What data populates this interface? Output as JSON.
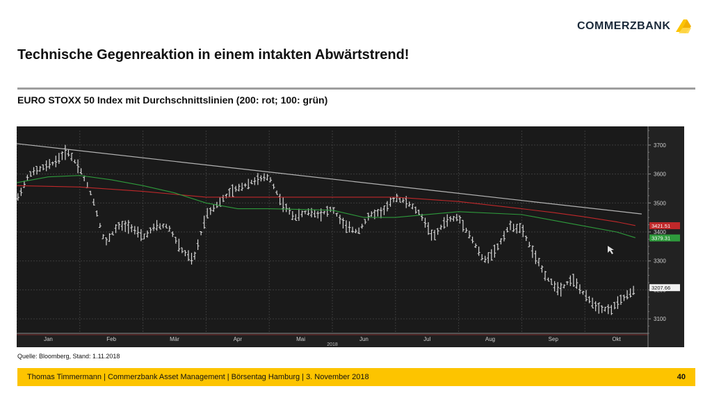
{
  "brand": {
    "name": "COMMERZBANK",
    "accent": "#fdc400"
  },
  "slide": {
    "title": "Technische Gegenreaktion in einem intakten Abwärtstrend!",
    "subtitle": "EURO STOXX 50 Index mit Durchschnittslinien (200: rot; 100: grün)",
    "source": "Quelle: Bloomberg, Stand: 1.11.2018",
    "footer": "Thomas Timmermann | Commerzbank Asset Management | Börsentag Hamburg | 3. November 2018",
    "page_number": "40"
  },
  "chart_data": {
    "type": "line",
    "title": "",
    "xlabel": "",
    "ylabel": "",
    "x_year_label": "2018",
    "categories": [
      "Jan",
      "Feb",
      "Mär",
      "Apr",
      "Mai",
      "Jun",
      "Jul",
      "Aug",
      "Sep",
      "Okt"
    ],
    "x_range": [
      0,
      10
    ],
    "ylim": [
      3050,
      3750
    ],
    "y_ticks": [
      3100,
      3200,
      3300,
      3400,
      3500,
      3600,
      3700
    ],
    "grid": true,
    "background": "#1a1a1a",
    "series": [
      {
        "key": "price",
        "color": "#d9d9d9",
        "x": [
          0.0,
          0.2,
          0.4,
          0.6,
          0.8,
          1.0,
          1.2,
          1.4,
          1.6,
          1.8,
          2.0,
          2.2,
          2.4,
          2.6,
          2.8,
          3.0,
          3.2,
          3.4,
          3.6,
          3.8,
          4.0,
          4.2,
          4.4,
          4.6,
          4.8,
          5.0,
          5.2,
          5.4,
          5.6,
          5.8,
          6.0,
          6.2,
          6.4,
          6.6,
          6.8,
          7.0,
          7.2,
          7.4,
          7.6,
          7.8,
          8.0,
          8.2,
          8.4,
          8.6,
          8.8,
          9.0,
          9.2,
          9.4,
          9.6,
          9.8
        ],
        "values": [
          3510,
          3600,
          3620,
          3640,
          3680,
          3620,
          3520,
          3360,
          3420,
          3420,
          3380,
          3420,
          3420,
          3340,
          3300,
          3460,
          3500,
          3540,
          3560,
          3580,
          3590,
          3500,
          3450,
          3470,
          3460,
          3480,
          3420,
          3400,
          3460,
          3470,
          3520,
          3500,
          3460,
          3380,
          3440,
          3450,
          3380,
          3300,
          3340,
          3420,
          3410,
          3320,
          3240,
          3200,
          3240,
          3180,
          3140,
          3130,
          3170,
          3200
        ]
      },
      {
        "key": "ma200",
        "color": "#c0282a",
        "x": [
          0.0,
          1.0,
          2.0,
          3.0,
          4.0,
          5.0,
          6.0,
          7.0,
          8.0,
          8.5,
          9.0,
          9.5,
          9.8
        ],
        "values": [
          3560,
          3555,
          3540,
          3520,
          3520,
          3520,
          3520,
          3505,
          3480,
          3467,
          3452,
          3435,
          3422
        ]
      },
      {
        "key": "ma100",
        "color": "#2e9b3c",
        "x": [
          0.0,
          0.5,
          1.0,
          1.5,
          2.0,
          2.5,
          3.0,
          3.5,
          4.0,
          5.0,
          5.5,
          6.0,
          7.0,
          8.0,
          8.5,
          9.0,
          9.5,
          9.8
        ],
        "values": [
          3570,
          3590,
          3595,
          3580,
          3560,
          3535,
          3500,
          3480,
          3480,
          3475,
          3450,
          3450,
          3470,
          3460,
          3440,
          3420,
          3400,
          3380
        ]
      },
      {
        "key": "trendline",
        "color": "#b4b4b4",
        "x": [
          0.0,
          9.9
        ],
        "values": [
          3705,
          3462
        ]
      }
    ],
    "last_value_labels": [
      {
        "series": "ma200",
        "value": 3421.51,
        "label": "3421.51",
        "color": "#c0282a"
      },
      {
        "series": "ma100",
        "value": 3379.31,
        "label": "3379.31",
        "color": "#2e9b3c"
      },
      {
        "series": "price",
        "value": 3207.66,
        "label": "3207.66",
        "color": "#e8e8e8"
      }
    ]
  }
}
